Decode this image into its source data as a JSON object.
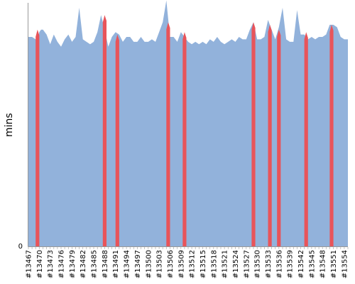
{
  "chart_data": {
    "type": "area",
    "title": "",
    "xlabel": "",
    "ylabel": "mins",
    "y_ticks": [
      "0"
    ],
    "x_ticks": [
      "#13467",
      "#13470",
      "#13473",
      "#13476",
      "#13479",
      "#13482",
      "#13485",
      "#13488",
      "#13491",
      "#13494",
      "#13497",
      "#13500",
      "#13503",
      "#13506",
      "#13509",
      "#13512",
      "#13515",
      "#13518",
      "#13521",
      "#13524",
      "#13527",
      "#13530",
      "#13533",
      "#13536",
      "#13539",
      "#13542",
      "#13545",
      "#13548",
      "#13551",
      "#13554"
    ],
    "x_range": [
      13467,
      13555
    ],
    "ylim": [
      0,
      100
    ],
    "grid": false,
    "legend": "none",
    "colors": {
      "area": "#92b2db",
      "failed": "#e8545a"
    },
    "series": [
      {
        "x": [
          13467.0,
          13467.5,
          13468,
          13469,
          13469.5,
          13470,
          13470.5,
          13471,
          13472,
          13473,
          13474,
          13475,
          13476,
          13477,
          13478,
          13479,
          13480,
          13481,
          13482,
          13483,
          13484,
          13485,
          13486,
          13487,
          13488,
          13489,
          13490,
          13491,
          13492,
          13493,
          13494,
          13495,
          13496,
          13497,
          13498,
          13499,
          13500,
          13501,
          13502,
          13503,
          13504,
          13505,
          13506,
          13507,
          13508,
          13509,
          13510,
          13511,
          13512,
          13513,
          13514,
          13515,
          13516,
          13517,
          13518,
          13519,
          13520,
          13521,
          13522,
          13523,
          13524,
          13525,
          13526,
          13527,
          13528,
          13529,
          13530,
          13531,
          13532,
          13533,
          13534,
          13535,
          13536,
          13537,
          13538,
          13539,
          13540,
          13541,
          13542,
          13543,
          13544,
          13545,
          13546,
          13547,
          13548,
          13549,
          13550,
          13551,
          13552,
          13553,
          13554,
          13555
        ],
        "y": [
          86,
          86,
          86,
          85,
          84,
          88,
          89,
          89,
          87,
          83,
          87,
          84,
          82,
          85,
          87,
          84,
          86,
          98,
          85,
          84,
          83,
          84,
          88,
          95,
          89,
          82,
          86,
          88,
          87,
          84,
          86,
          86,
          84,
          84,
          86,
          84,
          84,
          85,
          84,
          88,
          92,
          101,
          86,
          86,
          84,
          88,
          86,
          84,
          83,
          84,
          83,
          84,
          83,
          85,
          84,
          86,
          84,
          83,
          84,
          85,
          84,
          86,
          85,
          85,
          89,
          92,
          85,
          85,
          86,
          93,
          89,
          85,
          90,
          98,
          85,
          84,
          84,
          97,
          87,
          87,
          85,
          86,
          85,
          86,
          86,
          87,
          91,
          91,
          90,
          86,
          85,
          85
        ]
      }
    ],
    "failed_builds": [
      {
        "x": 13469.5,
        "y": 89
      },
      {
        "x": 13488.0,
        "y": 95
      },
      {
        "x": 13491.5,
        "y": 87
      },
      {
        "x": 13505.5,
        "y": 92
      },
      {
        "x": 13510.0,
        "y": 88
      },
      {
        "x": 13529.0,
        "y": 92
      },
      {
        "x": 13533.5,
        "y": 91
      },
      {
        "x": 13536.0,
        "y": 89
      },
      {
        "x": 13543.5,
        "y": 88
      },
      {
        "x": 13550.5,
        "y": 91
      }
    ]
  }
}
